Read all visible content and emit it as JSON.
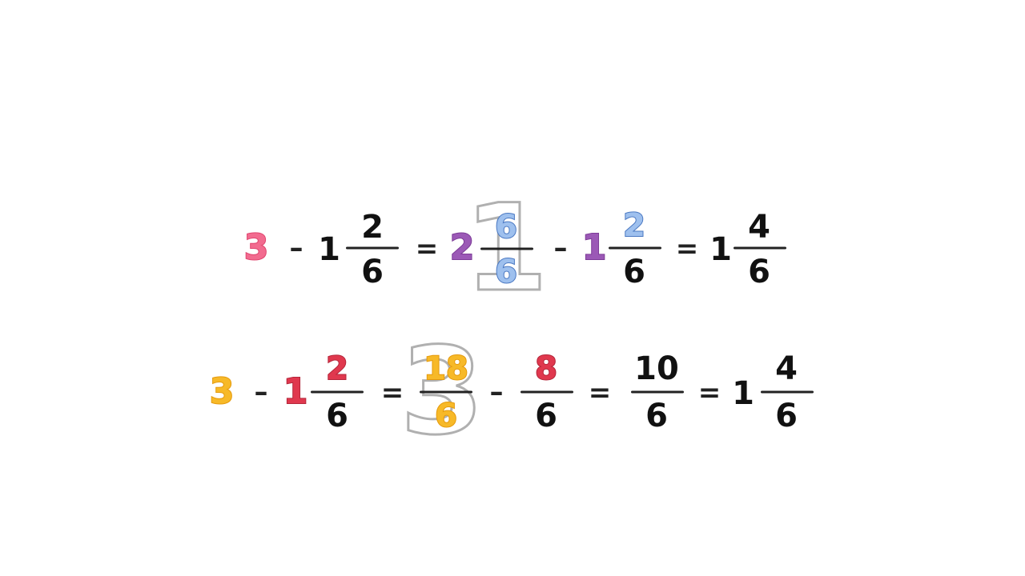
{
  "colors": {
    "pink": "#f26b8f",
    "purple": "#9b59b6",
    "blue": "#8fb3e6",
    "blue_stroke": "#4a78c2",
    "red": "#e0384e",
    "yellow": "#f7b928",
    "ink": "#111111",
    "ghost": "#b0b0b0"
  },
  "row1": {
    "a": "3",
    "minus1": "–",
    "b_whole": "1",
    "b_num": "2",
    "b_den": "6",
    "eq1": "=",
    "c_whole": "2",
    "c_num": "6",
    "c_den": "6",
    "ghost_digit": "1",
    "minus2": "–",
    "d_whole": "1",
    "d_num": "2",
    "d_den": "6",
    "eq2": "=",
    "r_whole": "1",
    "r_num": "4",
    "r_den": "6"
  },
  "row2": {
    "a": "3",
    "minus1": "–",
    "b_whole": "1",
    "b_num": "2",
    "b_den": "6",
    "eq1": "=",
    "ghost_digit": "3",
    "c_num": "18",
    "c_den": "6",
    "minus2": "–",
    "d_num": "8",
    "d_den": "6",
    "eq2": "=",
    "e_num": "10",
    "e_den": "6",
    "eq3": "=",
    "r_whole": "1",
    "r_num": "4",
    "r_den": "6"
  }
}
